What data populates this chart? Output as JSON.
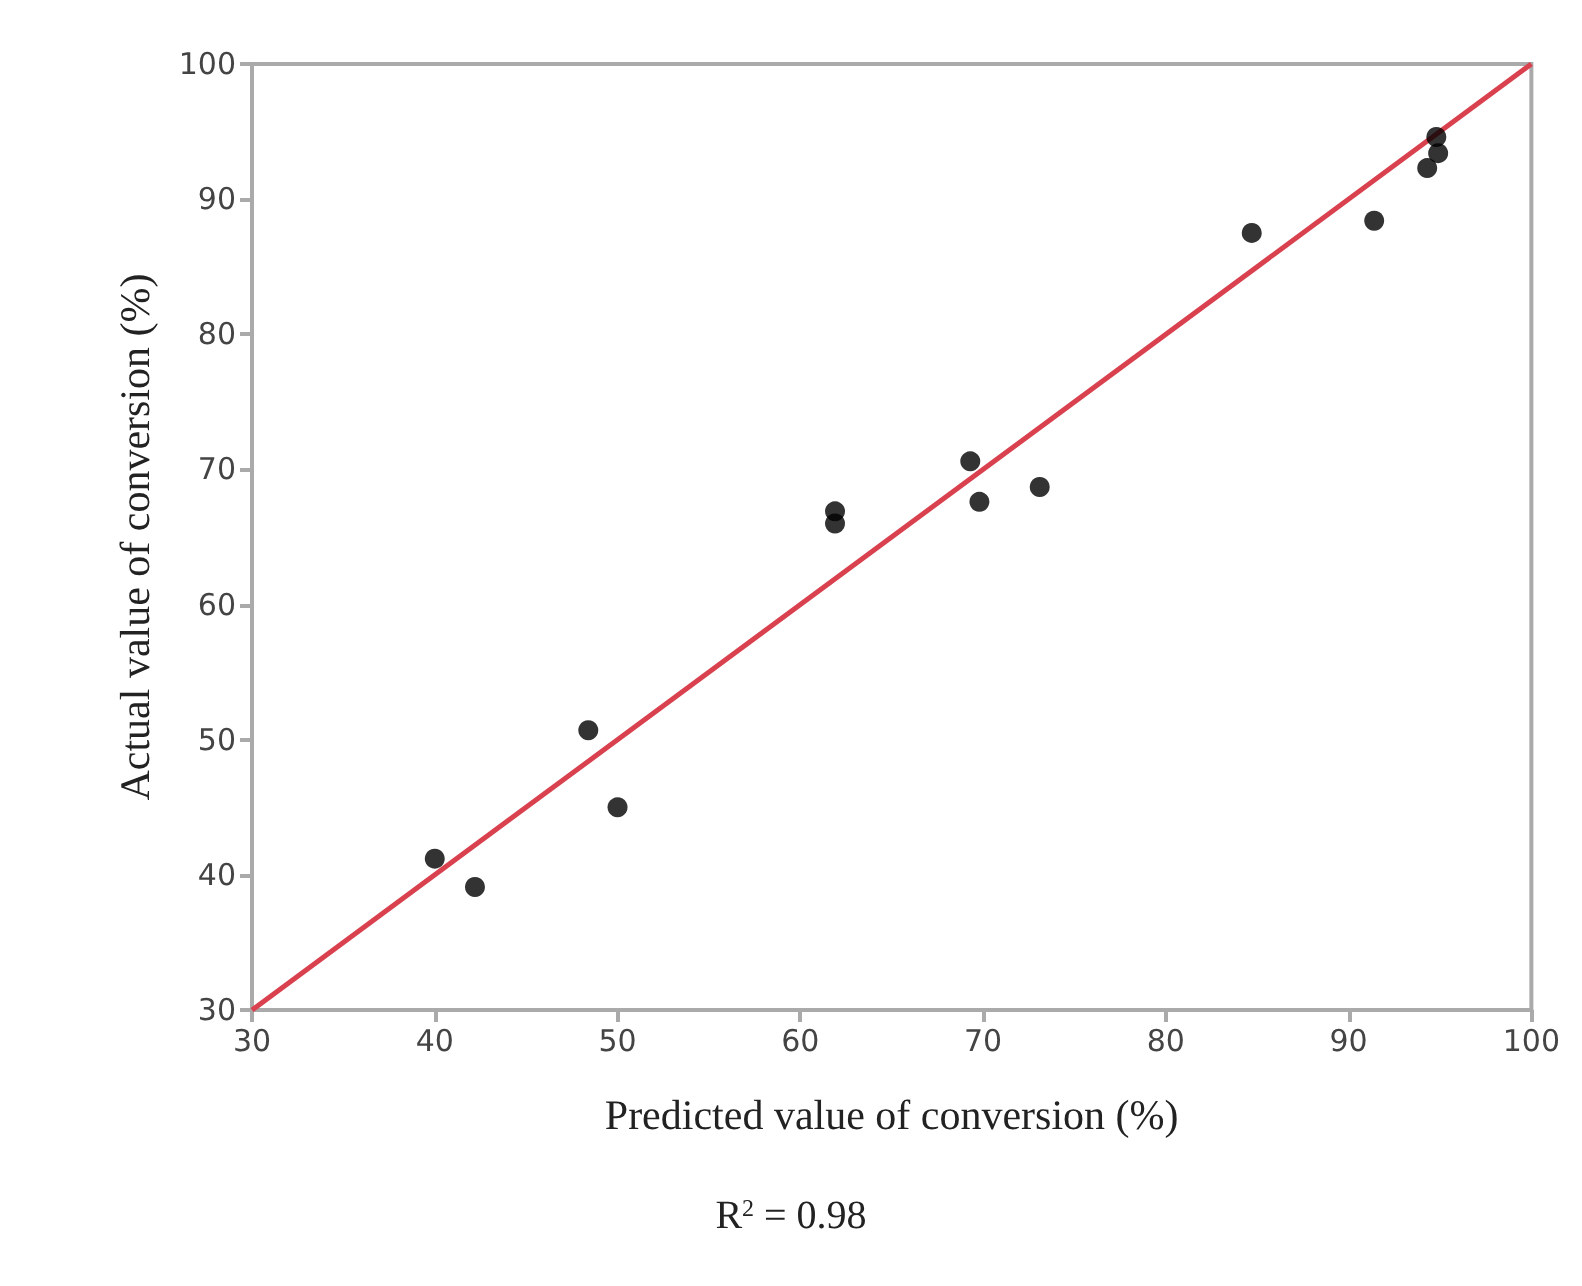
{
  "chart_data": {
    "type": "scatter",
    "xlabel": "Predicted value of conversion (%)",
    "ylabel": "Actual value of conversion (%)",
    "annotations": [
      "R$^{2}$ = 0.98"
    ],
    "xlim": [
      30,
      100
    ],
    "ylim": [
      30,
      100
    ],
    "xticks": [
      30,
      40,
      50,
      60,
      70,
      80,
      90,
      100
    ],
    "yticks": [
      30,
      40,
      50,
      60,
      70,
      80,
      90,
      100
    ],
    "grid": false,
    "marker": "circle",
    "series": [
      {
        "color": "#000000",
        "x": [
          40.0,
          42.2,
          48.4,
          50.0,
          61.9,
          61.9,
          69.3,
          69.8,
          73.1,
          84.7,
          91.4,
          94.8,
          94.9,
          94.3
        ],
        "values": [
          41.2,
          39.1,
          50.7,
          45.0,
          66.9,
          66.0,
          70.6,
          67.6,
          68.7,
          87.5,
          88.4,
          94.6,
          93.4,
          92.3
        ]
      },
      {
        "type": "line",
        "color": "#d9414f",
        "x": [
          30,
          100
        ],
        "values": [
          30,
          100
        ],
        "marker": "none",
        "line_style": "solid"
      }
    ]
  }
}
